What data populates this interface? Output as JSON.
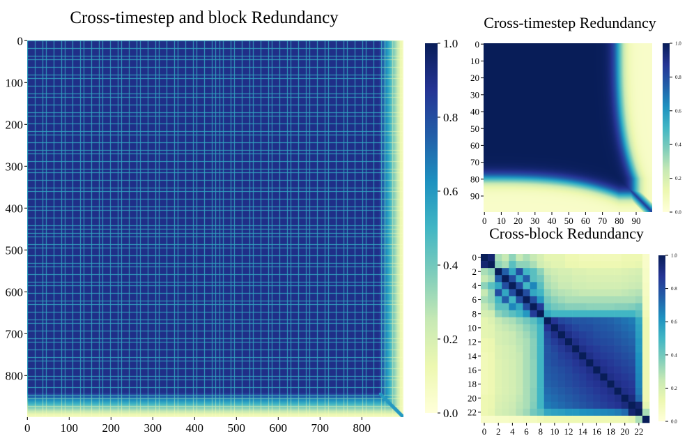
{
  "chart_data": [
    {
      "type": "heatmap",
      "title": "Cross-timestep and block Redundancy",
      "n": 900,
      "xticks": [
        0,
        100,
        200,
        300,
        400,
        500,
        600,
        700,
        800
      ],
      "yticks": [
        0,
        100,
        200,
        300,
        400,
        500,
        600,
        700,
        800
      ],
      "colorbar": {
        "range": [
          0.0,
          1.0
        ],
        "ticks": [
          "0.0",
          "0.2",
          "0.4",
          "0.6",
          "0.8",
          "1.0"
        ]
      },
      "pattern": {
        "period": 9,
        "base_value": 0.9,
        "grid_line_value": 0.55,
        "fade_start_index": 840,
        "fade_end_index": 899
      }
    },
    {
      "type": "heatmap",
      "title": "Cross-timestep Redundancy",
      "n": 100,
      "xticks": [
        "0",
        "10",
        "20",
        "30",
        "40",
        "50",
        "60",
        "70",
        "80",
        "90"
      ],
      "yticks": [
        "0",
        "10",
        "20",
        "30",
        "40",
        "50",
        "60",
        "70",
        "80",
        "90"
      ],
      "colorbar": {
        "range": [
          0.0,
          1.0
        ],
        "ticks": [
          "0.0",
          "0.2",
          "0.4",
          "0.6",
          "0.8",
          "1.0"
        ]
      },
      "profile": {
        "high_value": 1.0,
        "low_value": 0.05,
        "edge_start_at_0": 80,
        "edge_start_at_80": 90,
        "edge_width": 9
      }
    },
    {
      "type": "heatmap",
      "title": "Cross-block Redundancy",
      "n": 24,
      "xticks": [
        "0",
        "2",
        "4",
        "6",
        "8",
        "10",
        "12",
        "14",
        "16",
        "18",
        "20",
        "22"
      ],
      "yticks": [
        "0",
        "2",
        "4",
        "6",
        "8",
        "10",
        "12",
        "14",
        "16",
        "18",
        "20",
        "22"
      ],
      "colorbar": {
        "range": [
          0.0,
          1.0
        ],
        "ticks": [
          "0.0",
          "0.2",
          "0.4",
          "0.6",
          "0.8",
          "1.0"
        ]
      },
      "matrix": [
        [
          1.0,
          0.95,
          0.3,
          0.25,
          0.35,
          0.25,
          0.3,
          0.25,
          0.2,
          0.15,
          0.15,
          0.15,
          0.12,
          0.12,
          0.1,
          0.1,
          0.1,
          0.1,
          0.1,
          0.1,
          0.12,
          0.12,
          0.12,
          0.05
        ],
        [
          0.95,
          1.0,
          0.35,
          0.3,
          0.45,
          0.35,
          0.35,
          0.3,
          0.22,
          0.18,
          0.16,
          0.16,
          0.13,
          0.13,
          0.12,
          0.12,
          0.12,
          0.12,
          0.12,
          0.12,
          0.13,
          0.13,
          0.14,
          0.05
        ],
        [
          0.3,
          0.35,
          1.0,
          0.75,
          0.55,
          0.8,
          0.5,
          0.45,
          0.35,
          0.25,
          0.22,
          0.2,
          0.2,
          0.18,
          0.18,
          0.17,
          0.17,
          0.17,
          0.17,
          0.17,
          0.18,
          0.19,
          0.2,
          0.06
        ],
        [
          0.25,
          0.3,
          0.75,
          1.0,
          0.8,
          0.55,
          0.75,
          0.45,
          0.4,
          0.28,
          0.25,
          0.22,
          0.22,
          0.2,
          0.2,
          0.19,
          0.19,
          0.19,
          0.19,
          0.19,
          0.2,
          0.21,
          0.22,
          0.06
        ],
        [
          0.35,
          0.45,
          0.55,
          0.8,
          1.0,
          0.8,
          0.5,
          0.65,
          0.45,
          0.3,
          0.27,
          0.24,
          0.24,
          0.22,
          0.22,
          0.21,
          0.21,
          0.21,
          0.21,
          0.21,
          0.22,
          0.23,
          0.24,
          0.07
        ],
        [
          0.25,
          0.35,
          0.8,
          0.55,
          0.8,
          1.0,
          0.8,
          0.55,
          0.5,
          0.35,
          0.3,
          0.28,
          0.27,
          0.26,
          0.25,
          0.25,
          0.25,
          0.25,
          0.25,
          0.25,
          0.26,
          0.27,
          0.28,
          0.07
        ],
        [
          0.3,
          0.35,
          0.5,
          0.75,
          0.5,
          0.8,
          1.0,
          0.8,
          0.6,
          0.4,
          0.35,
          0.32,
          0.3,
          0.3,
          0.3,
          0.3,
          0.3,
          0.3,
          0.3,
          0.3,
          0.3,
          0.3,
          0.32,
          0.08
        ],
        [
          0.25,
          0.3,
          0.45,
          0.45,
          0.65,
          0.55,
          0.8,
          1.0,
          0.85,
          0.45,
          0.4,
          0.38,
          0.36,
          0.36,
          0.36,
          0.35,
          0.35,
          0.35,
          0.35,
          0.36,
          0.36,
          0.37,
          0.4,
          0.08
        ],
        [
          0.2,
          0.22,
          0.35,
          0.4,
          0.45,
          0.5,
          0.6,
          0.85,
          1.0,
          0.55,
          0.5,
          0.5,
          0.5,
          0.5,
          0.5,
          0.5,
          0.5,
          0.5,
          0.5,
          0.5,
          0.5,
          0.5,
          0.45,
          0.1
        ],
        [
          0.15,
          0.18,
          0.25,
          0.28,
          0.3,
          0.35,
          0.4,
          0.45,
          0.55,
          1.0,
          0.88,
          0.82,
          0.8,
          0.78,
          0.78,
          0.77,
          0.76,
          0.75,
          0.74,
          0.72,
          0.7,
          0.68,
          0.55,
          0.12
        ],
        [
          0.15,
          0.16,
          0.22,
          0.25,
          0.27,
          0.3,
          0.35,
          0.4,
          0.5,
          0.88,
          1.0,
          0.9,
          0.85,
          0.82,
          0.8,
          0.8,
          0.78,
          0.77,
          0.76,
          0.74,
          0.72,
          0.7,
          0.57,
          0.12
        ],
        [
          0.15,
          0.16,
          0.2,
          0.22,
          0.24,
          0.28,
          0.32,
          0.38,
          0.5,
          0.82,
          0.9,
          1.0,
          0.9,
          0.86,
          0.84,
          0.82,
          0.8,
          0.79,
          0.78,
          0.76,
          0.74,
          0.72,
          0.58,
          0.12
        ],
        [
          0.12,
          0.13,
          0.2,
          0.22,
          0.24,
          0.27,
          0.3,
          0.36,
          0.5,
          0.8,
          0.85,
          0.9,
          1.0,
          0.9,
          0.86,
          0.84,
          0.82,
          0.81,
          0.8,
          0.78,
          0.76,
          0.74,
          0.6,
          0.12
        ],
        [
          0.12,
          0.13,
          0.18,
          0.2,
          0.22,
          0.26,
          0.3,
          0.36,
          0.5,
          0.78,
          0.82,
          0.86,
          0.9,
          1.0,
          0.9,
          0.87,
          0.85,
          0.83,
          0.82,
          0.8,
          0.78,
          0.76,
          0.6,
          0.12
        ],
        [
          0.1,
          0.12,
          0.18,
          0.2,
          0.22,
          0.25,
          0.3,
          0.36,
          0.5,
          0.78,
          0.8,
          0.84,
          0.86,
          0.9,
          1.0,
          0.9,
          0.87,
          0.85,
          0.84,
          0.82,
          0.8,
          0.78,
          0.62,
          0.12
        ],
        [
          0.1,
          0.12,
          0.17,
          0.19,
          0.21,
          0.25,
          0.3,
          0.35,
          0.5,
          0.77,
          0.8,
          0.82,
          0.84,
          0.87,
          0.9,
          1.0,
          0.9,
          0.88,
          0.86,
          0.84,
          0.82,
          0.8,
          0.63,
          0.12
        ],
        [
          0.1,
          0.12,
          0.17,
          0.19,
          0.21,
          0.25,
          0.3,
          0.35,
          0.5,
          0.76,
          0.78,
          0.8,
          0.82,
          0.85,
          0.87,
          0.9,
          1.0,
          0.9,
          0.88,
          0.86,
          0.84,
          0.82,
          0.64,
          0.12
        ],
        [
          0.1,
          0.12,
          0.17,
          0.19,
          0.21,
          0.25,
          0.3,
          0.35,
          0.5,
          0.75,
          0.77,
          0.79,
          0.81,
          0.83,
          0.85,
          0.88,
          0.9,
          1.0,
          0.9,
          0.88,
          0.86,
          0.84,
          0.65,
          0.12
        ],
        [
          0.1,
          0.12,
          0.17,
          0.19,
          0.21,
          0.25,
          0.3,
          0.35,
          0.5,
          0.74,
          0.76,
          0.78,
          0.8,
          0.82,
          0.84,
          0.86,
          0.88,
          0.9,
          1.0,
          0.9,
          0.88,
          0.86,
          0.66,
          0.12
        ],
        [
          0.1,
          0.12,
          0.17,
          0.19,
          0.21,
          0.25,
          0.3,
          0.36,
          0.5,
          0.72,
          0.74,
          0.76,
          0.78,
          0.8,
          0.82,
          0.84,
          0.86,
          0.88,
          0.9,
          1.0,
          0.9,
          0.88,
          0.68,
          0.12
        ],
        [
          0.12,
          0.13,
          0.18,
          0.2,
          0.22,
          0.26,
          0.3,
          0.36,
          0.5,
          0.7,
          0.72,
          0.74,
          0.76,
          0.78,
          0.8,
          0.82,
          0.84,
          0.86,
          0.88,
          0.9,
          1.0,
          0.92,
          0.72,
          0.12
        ],
        [
          0.12,
          0.13,
          0.19,
          0.21,
          0.23,
          0.27,
          0.3,
          0.37,
          0.5,
          0.68,
          0.7,
          0.72,
          0.74,
          0.76,
          0.78,
          0.8,
          0.82,
          0.84,
          0.86,
          0.88,
          0.92,
          1.0,
          0.95,
          0.15
        ],
        [
          0.12,
          0.14,
          0.2,
          0.22,
          0.24,
          0.28,
          0.32,
          0.4,
          0.45,
          0.55,
          0.57,
          0.58,
          0.6,
          0.6,
          0.62,
          0.63,
          0.64,
          0.65,
          0.66,
          0.68,
          0.72,
          0.95,
          1.0,
          0.3
        ],
        [
          0.05,
          0.05,
          0.06,
          0.06,
          0.07,
          0.07,
          0.08,
          0.08,
          0.1,
          0.12,
          0.12,
          0.12,
          0.12,
          0.12,
          0.12,
          0.12,
          0.12,
          0.12,
          0.12,
          0.12,
          0.12,
          0.15,
          0.3,
          1.0
        ]
      ]
    }
  ],
  "colormap": [
    "#ffffd9",
    "#edf8b1",
    "#c7e9b4",
    "#7fcdbb",
    "#41b6c4",
    "#1d91c0",
    "#225ea8",
    "#253494",
    "#081d58"
  ]
}
